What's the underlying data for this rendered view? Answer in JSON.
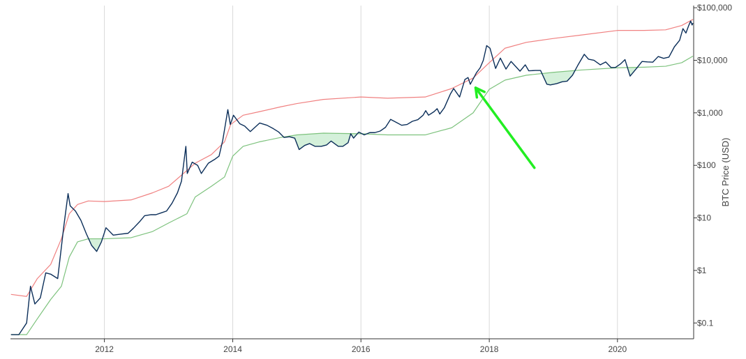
{
  "chart_data": {
    "type": "line",
    "title": "",
    "xlabel": "",
    "ylabel": "BTC Price (USD)",
    "y_scale": "log",
    "y_axis_position": "right",
    "ylim": [
      0.05,
      110000
    ],
    "xlim": [
      "2010-07-15",
      "2021-03-10"
    ],
    "x_tick_labels": [
      "2012",
      "2014",
      "2016",
      "2018",
      "2020"
    ],
    "x_tick_values": [
      "2012-01-01",
      "2014-01-01",
      "2016-01-01",
      "2018-01-01",
      "2020-01-01"
    ],
    "y_tick_labels": [
      "$0.1",
      "$1",
      "$10",
      "$100",
      "$1,000",
      "$10,000",
      "$100,000"
    ],
    "y_tick_values": [
      0.1,
      1,
      10,
      100,
      1000,
      10000,
      100000
    ],
    "grid": {
      "x": true,
      "y": false
    },
    "legend": "none",
    "colors": {
      "price": "#0b2e59",
      "upper_band": "#f08080",
      "lower_band": "#7dc27d",
      "fill_below_lower": "#d4f0da",
      "annotation_arrow": "#22ee22",
      "gridline": "#d9d9d9",
      "axis": "#333333"
    },
    "series": [
      {
        "key": "price",
        "x": [
          "2010-07-18",
          "2010-09-01",
          "2010-10-15",
          "2010-11-06",
          "2010-12-01",
          "2011-01-01",
          "2011-02-01",
          "2011-03-01",
          "2011-04-10",
          "2011-05-15",
          "2011-06-08",
          "2011-06-20",
          "2011-07-20",
          "2011-08-20",
          "2011-09-20",
          "2011-10-20",
          "2011-11-18",
          "2011-12-15",
          "2012-01-10",
          "2012-02-20",
          "2012-04-01",
          "2012-05-15",
          "2012-06-15",
          "2012-07-20",
          "2012-08-17",
          "2012-09-20",
          "2012-10-20",
          "2012-11-20",
          "2012-12-20",
          "2013-01-20",
          "2013-02-20",
          "2013-03-15",
          "2013-04-09",
          "2013-04-17",
          "2013-05-15",
          "2013-06-15",
          "2013-07-06",
          "2013-08-15",
          "2013-09-20",
          "2013-10-15",
          "2013-11-05",
          "2013-11-20",
          "2013-12-04",
          "2013-12-18",
          "2014-01-05",
          "2014-02-10",
          "2014-03-10",
          "2014-04-11",
          "2014-06-03",
          "2014-07-15",
          "2014-08-20",
          "2014-09-20",
          "2014-10-20",
          "2014-11-20",
          "2014-12-20",
          "2015-01-14",
          "2015-02-15",
          "2015-03-15",
          "2015-04-15",
          "2015-05-20",
          "2015-06-20",
          "2015-07-15",
          "2015-08-25",
          "2015-09-20",
          "2015-10-20",
          "2015-11-04",
          "2015-11-20",
          "2015-12-20",
          "2016-01-20",
          "2016-02-20",
          "2016-03-20",
          "2016-04-20",
          "2016-05-20",
          "2016-06-18",
          "2016-07-20",
          "2016-08-20",
          "2016-09-20",
          "2016-10-20",
          "2016-11-20",
          "2016-12-20",
          "2017-01-04",
          "2017-01-20",
          "2017-02-20",
          "2017-03-10",
          "2017-03-25",
          "2017-04-20",
          "2017-05-25",
          "2017-06-12",
          "2017-07-16",
          "2017-08-15",
          "2017-09-02",
          "2017-09-15",
          "2017-10-20",
          "2017-11-10",
          "2017-11-28",
          "2017-12-17",
          "2018-01-05",
          "2018-02-06",
          "2018-03-05",
          "2018-04-06",
          "2018-05-05",
          "2018-06-25",
          "2018-07-25",
          "2018-08-14",
          "2018-09-20",
          "2018-10-20",
          "2018-11-25",
          "2018-12-15",
          "2019-01-20",
          "2019-02-20",
          "2019-03-20",
          "2019-04-20",
          "2019-05-20",
          "2019-06-26",
          "2019-07-20",
          "2019-08-20",
          "2019-09-25",
          "2019-10-26",
          "2019-11-25",
          "2019-12-20",
          "2020-01-20",
          "2020-02-13",
          "2020-03-13",
          "2020-04-20",
          "2020-05-20",
          "2020-06-20",
          "2020-07-20",
          "2020-08-20",
          "2020-09-20",
          "2020-10-20",
          "2020-11-20",
          "2020-12-20",
          "2021-01-08",
          "2021-01-25",
          "2021-02-10",
          "2021-02-21",
          "2021-03-01",
          "2021-03-06"
        ],
        "values": [
          0.06,
          0.06,
          0.1,
          0.5,
          0.23,
          0.3,
          0.9,
          0.85,
          0.7,
          7,
          29,
          17,
          13.5,
          9,
          5,
          3,
          2.3,
          3.5,
          6.5,
          4.7,
          4.9,
          5.1,
          6.4,
          8.5,
          11,
          11.5,
          11.5,
          12.5,
          13.5,
          19,
          30,
          50,
          230,
          70,
          115,
          100,
          70,
          110,
          130,
          150,
          300,
          600,
          1150,
          600,
          900,
          620,
          560,
          440,
          640,
          580,
          500,
          430,
          340,
          350,
          330,
          200,
          240,
          260,
          230,
          230,
          245,
          290,
          230,
          230,
          270,
          400,
          330,
          430,
          380,
          420,
          420,
          450,
          530,
          750,
          660,
          580,
          600,
          690,
          740,
          900,
          1100,
          900,
          1050,
          1200,
          950,
          1250,
          2300,
          2900,
          2000,
          4300,
          4700,
          3500,
          5800,
          7200,
          10000,
          19000,
          17000,
          7000,
          11000,
          6800,
          9500,
          6200,
          8200,
          6300,
          6400,
          6400,
          3500,
          3400,
          3600,
          3900,
          4000,
          5200,
          8000,
          13000,
          10500,
          10000,
          8200,
          9300,
          7300,
          7300,
          8600,
          10300,
          5000,
          7100,
          9500,
          9300,
          9200,
          11800,
          10900,
          11500,
          18000,
          24000,
          40000,
          33000,
          46000,
          56000,
          47000,
          51000
        ]
      },
      {
        "key": "upper_band",
        "x": [
          "2010-07-18",
          "2010-10-15",
          "2010-12-15",
          "2011-03-01",
          "2011-05-01",
          "2011-06-15",
          "2011-08-01",
          "2011-10-01",
          "2012-01-01",
          "2012-06-01",
          "2012-10-01",
          "2013-01-01",
          "2013-04-15",
          "2013-06-01",
          "2013-09-01",
          "2013-11-15",
          "2013-12-20",
          "2014-03-01",
          "2014-06-01",
          "2014-10-01",
          "2015-01-01",
          "2015-06-01",
          "2016-01-01",
          "2016-06-01",
          "2017-01-01",
          "2017-06-01",
          "2017-10-01",
          "2018-01-01",
          "2018-04-01",
          "2018-08-01",
          "2019-01-01",
          "2019-06-01",
          "2020-01-01",
          "2020-06-01",
          "2020-10-01",
          "2021-01-01",
          "2021-03-06"
        ],
        "values": [
          0.35,
          0.32,
          0.7,
          1.3,
          4,
          12,
          18,
          21,
          20.5,
          22,
          30,
          40,
          80,
          110,
          160,
          280,
          600,
          900,
          1050,
          1300,
          1500,
          1800,
          2000,
          1900,
          2000,
          2900,
          4600,
          9000,
          17000,
          22000,
          26000,
          30000,
          37000,
          37000,
          38000,
          46000,
          60000
        ]
      },
      {
        "key": "lower_band",
        "x": [
          "2010-07-18",
          "2010-10-15",
          "2010-12-15",
          "2011-03-01",
          "2011-05-01",
          "2011-06-15",
          "2011-08-01",
          "2011-10-01",
          "2012-01-01",
          "2012-06-01",
          "2012-10-01",
          "2013-01-01",
          "2013-04-15",
          "2013-06-01",
          "2013-09-01",
          "2013-11-15",
          "2014-01-01",
          "2014-03-01",
          "2014-06-01",
          "2014-10-01",
          "2015-01-01",
          "2015-06-01",
          "2016-01-01",
          "2016-06-01",
          "2017-01-01",
          "2017-06-01",
          "2017-10-01",
          "2018-01-01",
          "2018-04-01",
          "2018-08-01",
          "2019-01-01",
          "2019-06-01",
          "2020-01-01",
          "2020-06-01",
          "2020-10-01",
          "2021-01-01",
          "2021-03-06"
        ],
        "values": [
          0.06,
          0.06,
          0.12,
          0.28,
          0.5,
          1.8,
          3.5,
          4,
          4,
          4.2,
          5.5,
          8,
          12,
          25,
          40,
          60,
          150,
          230,
          280,
          340,
          380,
          410,
          400,
          380,
          380,
          520,
          1000,
          2800,
          4200,
          5200,
          5900,
          6500,
          7200,
          7400,
          7700,
          9000,
          12000
        ]
      }
    ],
    "annotations": [
      {
        "type": "arrow",
        "from": [
          "2018-09-15",
          90
        ],
        "to": [
          "2017-10-15",
          3000
        ]
      }
    ]
  }
}
